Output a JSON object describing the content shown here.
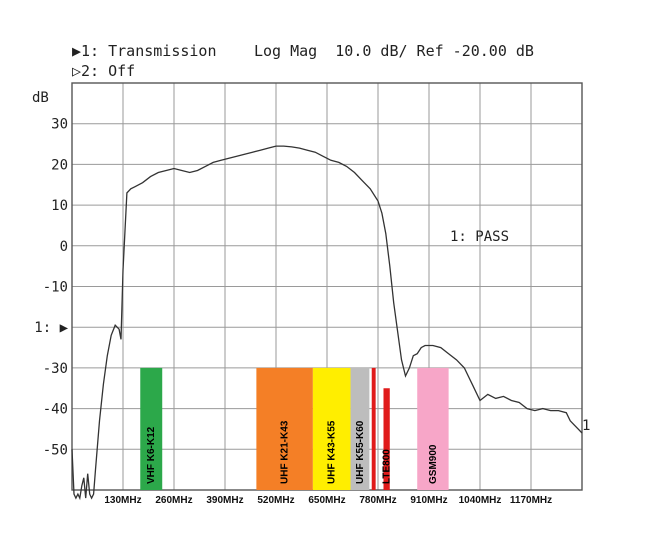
{
  "header": {
    "line1": "▶1: Transmission",
    "line2": "▷2: Off",
    "format": "Log Mag  10.0 dB/ Ref -20.00 dB",
    "y_unit": "dB",
    "status": "1: PASS",
    "ref_marker": "1:",
    "trace_end": "1"
  },
  "chart_data": {
    "type": "line",
    "title": "",
    "ylabel": "dB",
    "xlabel": "",
    "ylim": [
      -60,
      40
    ],
    "xlim": [
      0,
      1300
    ],
    "y_ticks": [
      "30",
      "20",
      "10",
      "0",
      "-10",
      "1: ▶",
      "-30",
      "-40",
      "-50"
    ],
    "x_ticks": [
      {
        "x": 130,
        "label": "130MHz"
      },
      {
        "x": 260,
        "label": "260MHz"
      },
      {
        "x": 390,
        "label": "390MHz"
      },
      {
        "x": 520,
        "label": "520MHz"
      },
      {
        "x": 650,
        "label": "650MHz"
      },
      {
        "x": 780,
        "label": "780MHz"
      },
      {
        "x": 910,
        "label": "910MHz"
      },
      {
        "x": 1040,
        "label": "1040MHz"
      },
      {
        "x": 1170,
        "label": "1170MHz"
      }
    ],
    "grid": true,
    "series": [
      {
        "x": [
          0,
          5,
          10,
          15,
          20,
          25,
          30,
          35,
          40,
          45,
          50,
          55,
          60,
          70,
          80,
          90,
          100,
          110,
          120,
          125,
          130,
          140,
          150,
          160,
          180,
          200,
          220,
          240,
          260,
          280,
          300,
          320,
          340,
          360,
          380,
          400,
          420,
          440,
          460,
          480,
          500,
          520,
          540,
          560,
          580,
          600,
          620,
          640,
          660,
          680,
          700,
          720,
          740,
          760,
          780,
          790,
          800,
          810,
          820,
          830,
          840,
          850,
          860,
          870,
          880,
          890,
          900,
          910,
          920,
          940,
          960,
          980,
          1000,
          1020,
          1040,
          1060,
          1080,
          1100,
          1120,
          1140,
          1160,
          1180,
          1200,
          1220,
          1240,
          1260,
          1270,
          1280,
          1290,
          1300
        ],
        "y": [
          -50,
          -61,
          -62,
          -61,
          -62,
          -59,
          -57,
          -62,
          -56,
          -61,
          -62,
          -61,
          -55,
          -43,
          -34,
          -27,
          -22,
          -19.5,
          -20.5,
          -23,
          -6,
          13,
          14,
          14.5,
          15.5,
          17,
          18,
          18.5,
          19,
          18.5,
          18,
          18.5,
          19.5,
          20.5,
          21,
          21.5,
          22,
          22.5,
          23,
          23.5,
          24,
          24.5,
          24.5,
          24.3,
          24,
          23.5,
          23,
          22,
          21,
          20.5,
          19.5,
          18,
          16,
          14,
          11,
          8,
          3,
          -5,
          -14,
          -21,
          -28,
          -32,
          -30,
          -27,
          -26.5,
          -25,
          -24.5,
          -24.5,
          -24.5,
          -25,
          -26.5,
          -28,
          -30,
          -34,
          -38,
          -36.5,
          -37.5,
          -37,
          -38,
          -38.5,
          -40,
          -40.5,
          -40,
          -40.5,
          -40.5,
          -41,
          -43,
          -44,
          -45,
          -46
        ]
      }
    ],
    "bands": [
      {
        "label": "VHF K6-K12",
        "x0": 174,
        "x1": 230,
        "y0": -60,
        "y1": -30,
        "color": "#2ca84a"
      },
      {
        "label": "UHF K21-K43",
        "x0": 470,
        "x1": 614,
        "y0": -60,
        "y1": -30,
        "color": "#f47f26"
      },
      {
        "label": "UHF K43-K55",
        "x0": 614,
        "x1": 710,
        "y0": -60,
        "y1": -30,
        "color": "#ffee00"
      },
      {
        "label": "UHF K55-K60",
        "x0": 710,
        "x1": 758,
        "y0": -60,
        "y1": -30,
        "color": "#bdbdbd"
      },
      {
        "label": "",
        "x0": 764,
        "x1": 774,
        "y0": -60,
        "y1": -30,
        "color": "#e01b1b"
      },
      {
        "label": "LTE800",
        "x0": 794,
        "x1": 810,
        "y0": -60,
        "y1": -35,
        "color": "#e01b1b"
      },
      {
        "label": "GSM900",
        "x0": 880,
        "x1": 960,
        "y0": -60,
        "y1": -30,
        "color": "#f7a6c8"
      }
    ]
  }
}
